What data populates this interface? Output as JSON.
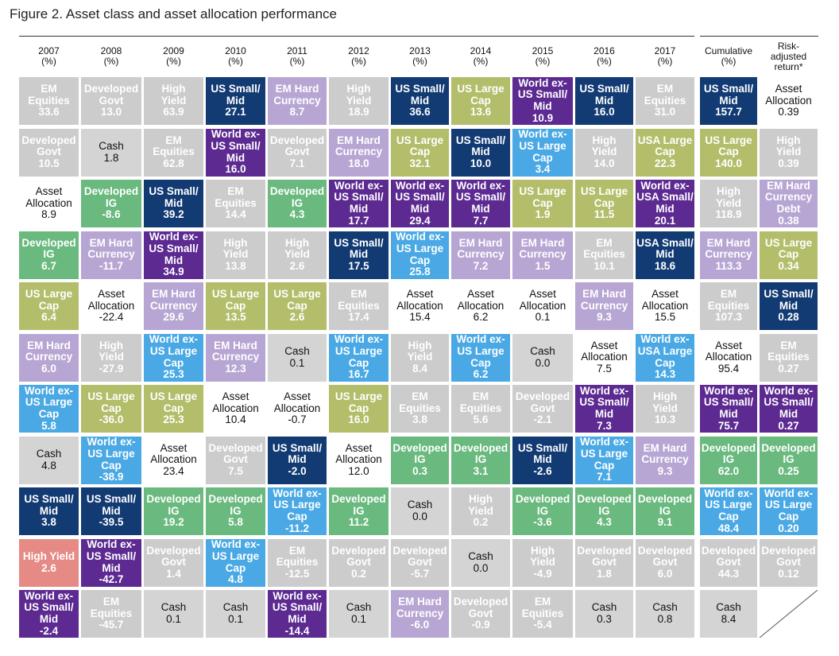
{
  "title": "Figure 2. Asset class and asset allocation performance",
  "colors": {
    "EM Equities": "#2aa7a3",
    "Developed Govt": "#d4a02b",
    "High Yield": "#e68a86",
    "US Small/\nMid": "#123a73",
    "EM Hard\nCurrency": "#b7a6d3",
    "US Large\nCap": "#b3bd6a",
    "World ex-\nUS Small/\nMid": "#5c2a91",
    "Cash": "#d4d4d4",
    "Developed\nIG": "#6ab97e",
    "World ex-\nUS Large\nCap": "#4aa9e4",
    "USA Large\nCap": "#b3bd6a",
    "World ex-\nUSA Small/\nMid": "#5c2a91",
    "USA Small/\nMid": "#123a73",
    "World ex-\nUSA Large\nCap": "#4aa9e4",
    "Asset\nAllocation": "#ffffff",
    "EM Hard\nCurrency\nDebt": "#b7a6d3"
  },
  "chart_data": {
    "type": "table",
    "title": "Figure 2. Asset class and asset allocation performance",
    "columns": [
      {
        "label": "2007\n(%)",
        "cells": [
          {
            "name": "EM\nEquities",
            "value": "33.6"
          },
          {
            "name": "Developed\nGovt",
            "value": "10.5"
          },
          {
            "name": "Asset\nAllocation",
            "value": "8.9"
          },
          {
            "name": "Developed\nIG",
            "value": "6.7"
          },
          {
            "name": "US Large\nCap",
            "value": "6.4"
          },
          {
            "name": "EM Hard\nCurrency",
            "value": "6.0"
          },
          {
            "name": "World ex-\nUS Large\nCap",
            "value": "5.8"
          },
          {
            "name": "Cash",
            "value": "4.8"
          },
          {
            "name": "US Small/\nMid",
            "value": "3.8"
          },
          {
            "name": "High Yield",
            "value": "2.6"
          },
          {
            "name": "World ex-\nUS Small/\nMid",
            "value": "-2.4"
          }
        ]
      },
      {
        "label": "2008\n(%)",
        "cells": [
          {
            "name": "Developed\nGovt",
            "value": "13.0"
          },
          {
            "name": "Cash",
            "value": "1.8"
          },
          {
            "name": "Developed\nIG",
            "value": "-8.6"
          },
          {
            "name": "EM Hard\nCurrency",
            "value": "-11.7"
          },
          {
            "name": "Asset\nAllocation",
            "value": "-22.4"
          },
          {
            "name": "High\nYield",
            "value": "-27.9"
          },
          {
            "name": "US Large\nCap",
            "value": "-36.0"
          },
          {
            "name": "World ex-\nUS Large\nCap",
            "value": "-38.9"
          },
          {
            "name": "US Small/\nMid",
            "value": "-39.5"
          },
          {
            "name": "World ex-\nUS Small/\nMid",
            "value": "-42.7"
          },
          {
            "name": "EM\nEquities",
            "value": "-45.7"
          }
        ]
      },
      {
        "label": "2009\n(%)",
        "cells": [
          {
            "name": "High\nYield",
            "value": "63.9"
          },
          {
            "name": "EM\nEquities",
            "value": "62.8"
          },
          {
            "name": "US Small/\nMid",
            "value": "39.2"
          },
          {
            "name": "World ex-\nUS Small/\nMid",
            "value": "34.9"
          },
          {
            "name": "EM Hard\nCurrency",
            "value": "29.6"
          },
          {
            "name": "World ex-\nUS Large\nCap",
            "value": "25.3"
          },
          {
            "name": "US Large\nCap",
            "value": "25.3"
          },
          {
            "name": "Asset\nAllocation",
            "value": "23.4"
          },
          {
            "name": "Developed\nIG",
            "value": "19.2"
          },
          {
            "name": "Developed\nGovt",
            "value": "1.4"
          },
          {
            "name": "Cash",
            "value": "0.1"
          }
        ]
      },
      {
        "label": "2010\n(%)",
        "cells": [
          {
            "name": "US Small/\nMid",
            "value": "27.1"
          },
          {
            "name": "World ex-\nUS Small/\nMid",
            "value": "16.0"
          },
          {
            "name": "EM\nEquities",
            "value": "14.4"
          },
          {
            "name": "High\nYield",
            "value": "13.8"
          },
          {
            "name": "US Large\nCap",
            "value": "13.5"
          },
          {
            "name": "EM Hard\nCurrency",
            "value": "12.3"
          },
          {
            "name": "Asset\nAllocation",
            "value": "10.4"
          },
          {
            "name": "Developed\nGovt",
            "value": "7.5"
          },
          {
            "name": "Developed\nIG",
            "value": "5.8"
          },
          {
            "name": "World ex-\nUS Large\nCap",
            "value": "4.8"
          },
          {
            "name": "Cash",
            "value": "0.1"
          }
        ]
      },
      {
        "label": "2011\n(%)",
        "cells": [
          {
            "name": "EM Hard\nCurrency",
            "value": "8.7"
          },
          {
            "name": "Developed\nGovt",
            "value": "7.1"
          },
          {
            "name": "Developed\nIG",
            "value": "4.3"
          },
          {
            "name": "High\nYield",
            "value": "2.6"
          },
          {
            "name": "US Large\nCap",
            "value": "2.6"
          },
          {
            "name": "Cash",
            "value": "0.1"
          },
          {
            "name": "Asset\nAllocation",
            "value": "-0.7"
          },
          {
            "name": "US Small/\nMid",
            "value": "-2.0"
          },
          {
            "name": "World ex-\nUS Large\nCap",
            "value": "-11.2"
          },
          {
            "name": "EM\nEquities",
            "value": "-12.5"
          },
          {
            "name": "World ex-\nUS Small/\nMid",
            "value": "-14.4"
          }
        ]
      },
      {
        "label": "2012\n(%)",
        "cells": [
          {
            "name": "High\nYield",
            "value": "18.9"
          },
          {
            "name": "EM Hard\nCurrency",
            "value": "18.0"
          },
          {
            "name": "World ex-\nUS Small/\nMid",
            "value": "17.7"
          },
          {
            "name": "US Small/\nMid",
            "value": "17.5"
          },
          {
            "name": "EM\nEquities",
            "value": "17.4"
          },
          {
            "name": "World ex-\nUS Large\nCap",
            "value": "16.7"
          },
          {
            "name": "US Large\nCap",
            "value": "16.0"
          },
          {
            "name": "Asset\nAllocation",
            "value": "12.0"
          },
          {
            "name": "Developed\nIG",
            "value": "11.2"
          },
          {
            "name": "Developed\nGovt",
            "value": "0.2"
          },
          {
            "name": "Cash",
            "value": "0.1"
          }
        ]
      },
      {
        "label": "2013\n(%)",
        "cells": [
          {
            "name": "US Small/\nMid",
            "value": "36.6"
          },
          {
            "name": "US Large\nCap",
            "value": "32.1"
          },
          {
            "name": "World ex-\nUS Small/\nMid",
            "value": "29.4"
          },
          {
            "name": "World ex-\nUS Large\nCap",
            "value": "25.8"
          },
          {
            "name": "Asset\nAllocation",
            "value": "15.4"
          },
          {
            "name": "High\nYield",
            "value": "8.4"
          },
          {
            "name": "EM\nEquities",
            "value": "3.8"
          },
          {
            "name": "Developed\nIG",
            "value": "0.3"
          },
          {
            "name": "Cash",
            "value": "0.0"
          },
          {
            "name": "Developed\nGovt",
            "value": "-5.7"
          },
          {
            "name": "EM Hard\nCurrency",
            "value": "-6.0"
          }
        ]
      },
      {
        "label": "2014\n(%)",
        "cells": [
          {
            "name": "US Large\nCap",
            "value": "13.6"
          },
          {
            "name": "US Small/\nMid",
            "value": "10.0"
          },
          {
            "name": "World ex-\nUS Small/\nMid",
            "value": "7.7"
          },
          {
            "name": "EM Hard\nCurrency",
            "value": "7.2"
          },
          {
            "name": "Asset\nAllocation",
            "value": "6.2"
          },
          {
            "name": "World ex-\nUS Large\nCap",
            "value": "6.2"
          },
          {
            "name": "EM\nEquities",
            "value": "5.6"
          },
          {
            "name": "Developed\nIG",
            "value": "3.1"
          },
          {
            "name": "High\nYield",
            "value": "0.2"
          },
          {
            "name": "Cash",
            "value": "0.0"
          },
          {
            "name": "Developed\nGovt",
            "value": "-0.9"
          }
        ]
      },
      {
        "label": "2015\n(%)",
        "cells": [
          {
            "name": "World ex-\nUS Small/\nMid",
            "value": "10.9"
          },
          {
            "name": "World ex-\nUS Large\nCap",
            "value": "3.4"
          },
          {
            "name": "US Large\nCap",
            "value": "1.9"
          },
          {
            "name": "EM Hard\nCurrency",
            "value": "1.5"
          },
          {
            "name": "Asset\nAllocation",
            "value": "0.1"
          },
          {
            "name": "Cash",
            "value": "0.0"
          },
          {
            "name": "Developed\nGovt",
            "value": "-2.1"
          },
          {
            "name": "US Small/\nMid",
            "value": "-2.6"
          },
          {
            "name": "Developed\nIG",
            "value": "-3.6"
          },
          {
            "name": "High\nYield",
            "value": "-4.9"
          },
          {
            "name": "EM\nEquities",
            "value": "-5.4"
          }
        ]
      },
      {
        "label": "2016\n(%)",
        "cells": [
          {
            "name": "US Small/\nMid",
            "value": "16.0"
          },
          {
            "name": "High\nYield",
            "value": "14.0"
          },
          {
            "name": "US Large\nCap",
            "value": "11.5"
          },
          {
            "name": "EM\nEquities",
            "value": "10.1"
          },
          {
            "name": "EM Hard\nCurrency",
            "value": "9.3"
          },
          {
            "name": "Asset\nAllocation",
            "value": "7.5"
          },
          {
            "name": "World ex-\nUS Small/\nMid",
            "value": "7.3"
          },
          {
            "name": "World ex-\nUS Large\nCap",
            "value": "7.1"
          },
          {
            "name": "Developed\nIG",
            "value": "4.3"
          },
          {
            "name": "Developed\nGovt",
            "value": "1.8"
          },
          {
            "name": "Cash",
            "value": "0.3"
          }
        ]
      },
      {
        "label": "2017\n(%)",
        "cells": [
          {
            "name": "EM\nEquities",
            "value": "31.0"
          },
          {
            "name": "USA Large\nCap",
            "value": "22.3"
          },
          {
            "name": "World ex-\nUSA Small/\nMid",
            "value": "20.1"
          },
          {
            "name": "USA Small/\nMid",
            "value": "18.6"
          },
          {
            "name": "Asset\nAllocation",
            "value": "15.5"
          },
          {
            "name": "World ex-\nUSA Large\nCap",
            "value": "14.3"
          },
          {
            "name": "High\nYield",
            "value": "10.3"
          },
          {
            "name": "EM Hard\nCurrency",
            "value": "9.3"
          },
          {
            "name": "Developed\nIG",
            "value": "9.1"
          },
          {
            "name": "Developed\nGovt",
            "value": "6.0"
          },
          {
            "name": "Cash",
            "value": "0.8"
          }
        ]
      },
      {
        "label": "Cumulative\n(%)",
        "cells": [
          {
            "name": "US Small/\nMid",
            "value": "157.7"
          },
          {
            "name": "US Large\nCap",
            "value": "140.0"
          },
          {
            "name": "High\nYield",
            "value": "118.9"
          },
          {
            "name": "EM Hard\nCurrency",
            "value": "113.3"
          },
          {
            "name": "EM\nEquities",
            "value": "107.3"
          },
          {
            "name": "Asset\nAllocation",
            "value": "95.4"
          },
          {
            "name": "World ex-\nUS Small/\nMid",
            "value": "75.7"
          },
          {
            "name": "Developed\nIG",
            "value": "62.0"
          },
          {
            "name": "World ex-\nUS Large\nCap",
            "value": "48.4"
          },
          {
            "name": "Developed\nGovt",
            "value": "44.3"
          },
          {
            "name": "Cash",
            "value": "8.4"
          }
        ]
      },
      {
        "label": "Risk-\nadjusted\nreturn*",
        "cells": [
          {
            "name": "Asset\nAllocation",
            "value": "0.39"
          },
          {
            "name": "High\nYield",
            "value": "0.39"
          },
          {
            "name": "EM Hard\nCurrency\nDebt",
            "value": "0.38"
          },
          {
            "name": "US Large\nCap",
            "value": "0.34"
          },
          {
            "name": "US Small/\nMid",
            "value": "0.28"
          },
          {
            "name": "EM\nEquities",
            "value": "0.27"
          },
          {
            "name": "World ex-\nUS Small/\nMid",
            "value": "0.27"
          },
          {
            "name": "Developed\nIG",
            "value": "0.25"
          },
          {
            "name": "World ex-\nUS Large\nCap",
            "value": "0.20"
          },
          {
            "name": "Developed\nGovt",
            "value": "0.12"
          }
        ]
      }
    ]
  }
}
